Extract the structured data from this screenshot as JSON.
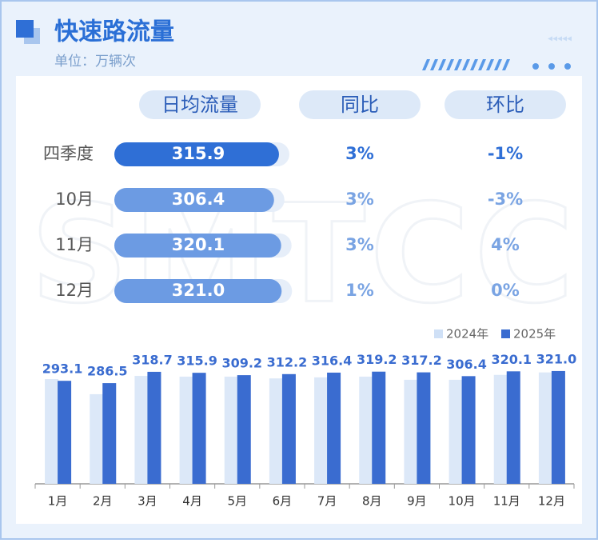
{
  "header": {
    "title": "快速路流量",
    "subtitle": "单位：万辆次"
  },
  "watermark": "SMTCC",
  "table": {
    "columns": [
      "日均流量",
      "同比",
      "环比"
    ],
    "rows": [
      {
        "label": "四季度",
        "value": 315.9,
        "value_label": "315.9",
        "yoy": "3%",
        "mom": "-1%"
      },
      {
        "label": "10月",
        "value": 306.4,
        "value_label": "306.4",
        "yoy": "3%",
        "mom": "-3%"
      },
      {
        "label": "11月",
        "value": 320.1,
        "value_label": "320.1",
        "yoy": "3%",
        "mom": "4%"
      },
      {
        "label": "12月",
        "value": 321.0,
        "value_label": "321.0",
        "yoy": "1%",
        "mom": "0%"
      }
    ]
  },
  "chart_data": {
    "type": "bar",
    "categories": [
      "1月",
      "2月",
      "3月",
      "4月",
      "5月",
      "6月",
      "7月",
      "8月",
      "9月",
      "10月",
      "11月",
      "12月"
    ],
    "series": [
      {
        "name": "2024年",
        "color": "#dce8f8",
        "values": [
          298,
          255,
          307,
          305,
          305,
          300,
          303,
          305,
          296,
          296,
          310,
          317
        ]
      },
      {
        "name": "2025年",
        "color": "#3a6cd0",
        "values": [
          293.1,
          286.5,
          318.7,
          315.9,
          309.2,
          312.2,
          316.4,
          319.2,
          317.2,
          306.4,
          320.1,
          321.0
        ],
        "value_labels": [
          "293.1",
          "286.5",
          "318.7",
          "315.9",
          "309.2",
          "312.2",
          "316.4",
          "319.2",
          "317.2",
          "306.4",
          "320.1",
          "321.0"
        ]
      }
    ],
    "ylim": [
      0,
      380
    ],
    "legend": "top-right"
  }
}
